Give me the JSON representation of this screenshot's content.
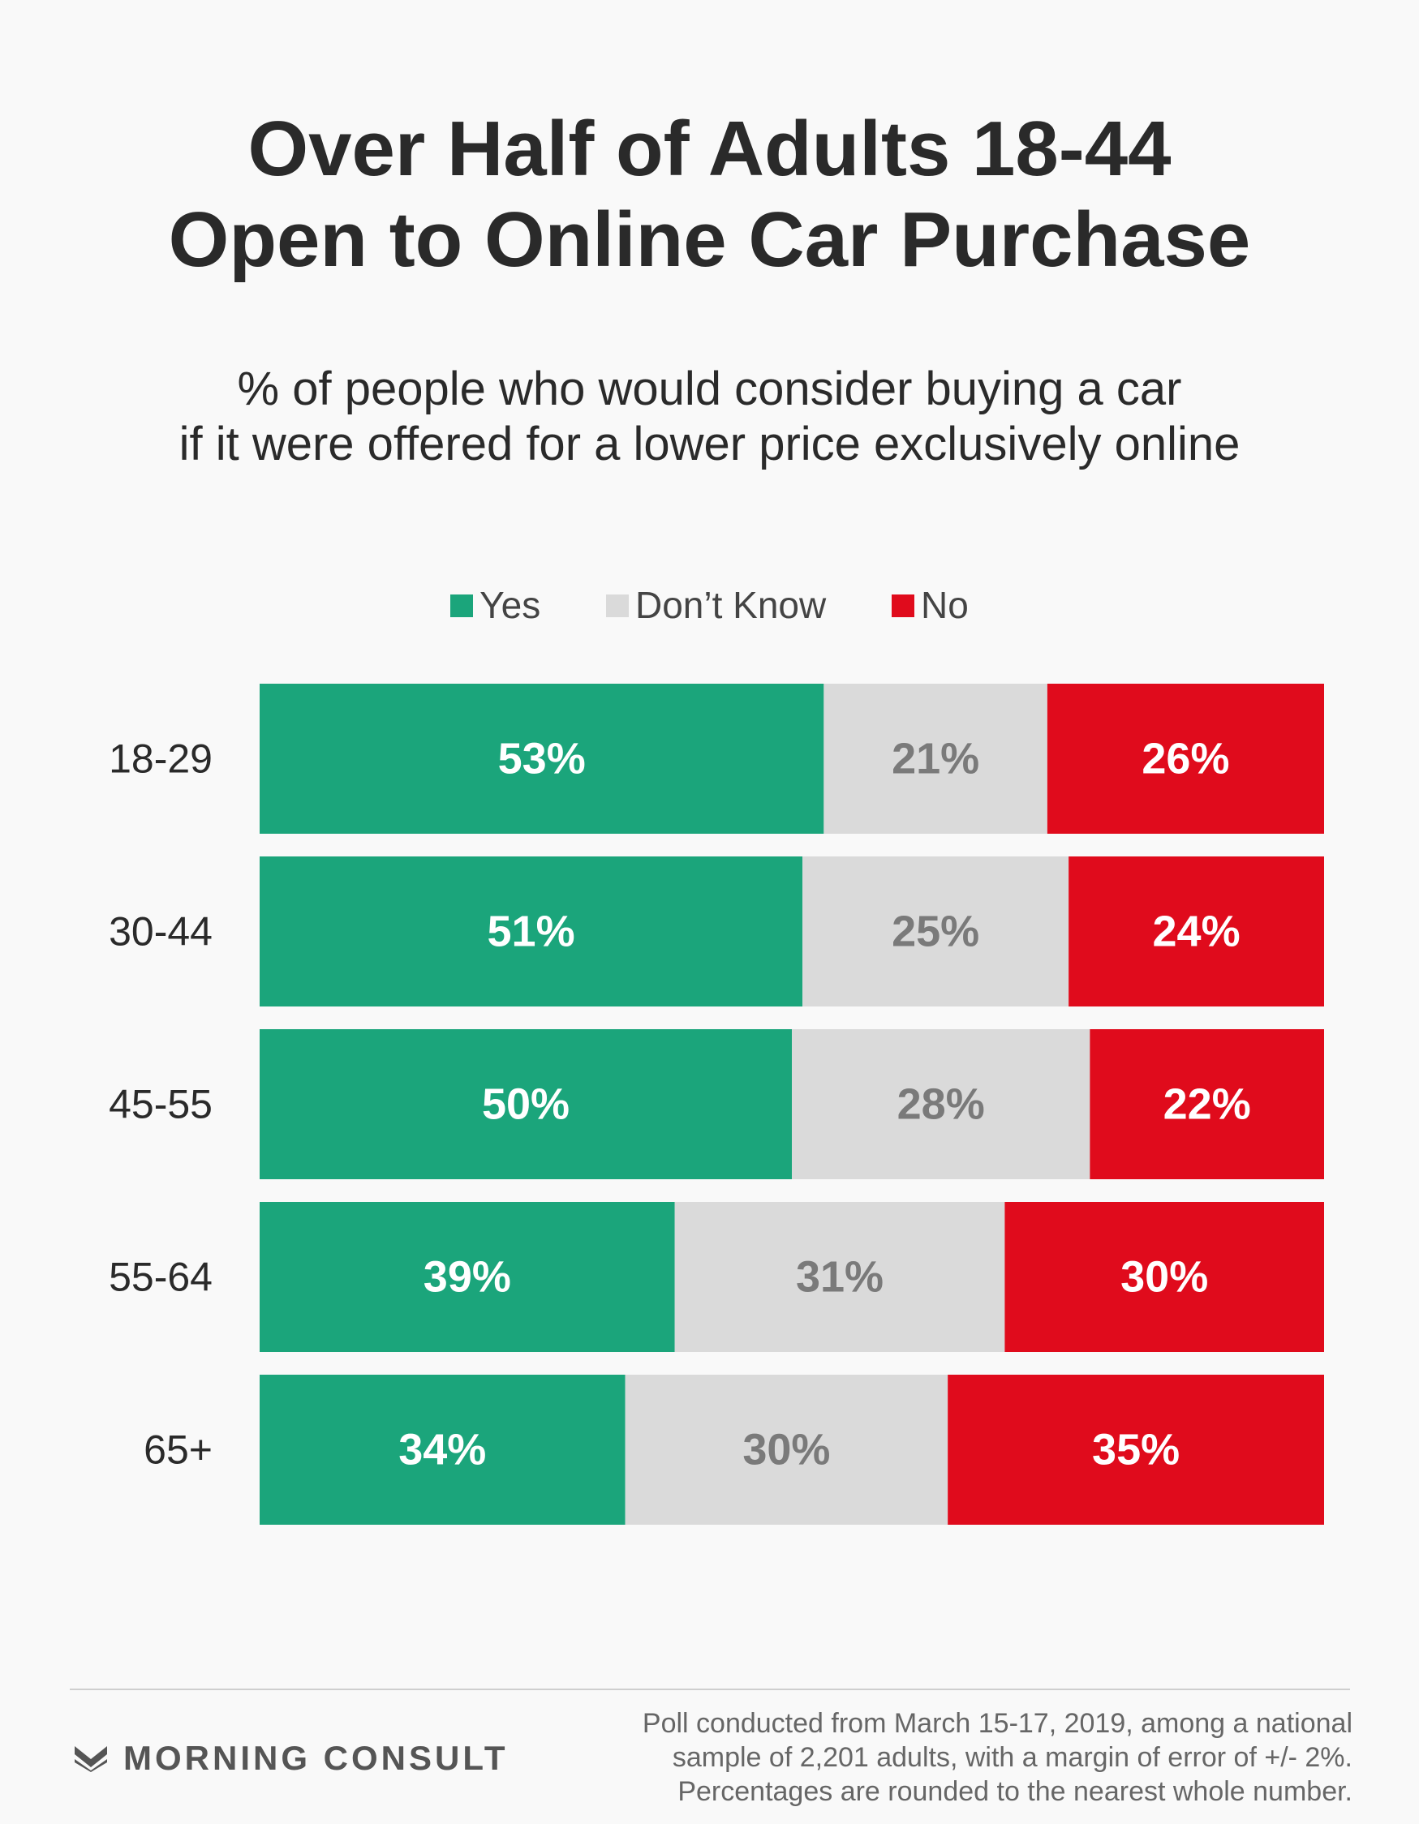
{
  "title": {
    "line1": "Over Half of Adults 18-44",
    "line2": "Open to Online Car Purchase"
  },
  "subtitle": {
    "line1": "% of people who would consider buying a car",
    "line2": "if it were offered for a lower price exclusively online"
  },
  "legend": [
    {
      "label": "Yes",
      "color": "#1ba57b"
    },
    {
      "label": "Don’t Know",
      "color": "#dadada"
    },
    {
      "label": "No",
      "color": "#e00b1c"
    }
  ],
  "chart_data": {
    "type": "bar",
    "orientation": "horizontal",
    "stacked": true,
    "categories": [
      "18-29",
      "30-44",
      "45-55",
      "55-64",
      "65+"
    ],
    "series": [
      {
        "name": "Yes",
        "color": "#1ba57b",
        "label_color": "#ffffff",
        "values": [
          53,
          51,
          50,
          39,
          34
        ]
      },
      {
        "name": "Don’t Know",
        "color": "#dadada",
        "label_color": "#7a7a7a",
        "values": [
          21,
          25,
          28,
          31,
          30
        ]
      },
      {
        "name": "No",
        "color": "#e00b1c",
        "label_color": "#ffffff",
        "values": [
          26,
          24,
          22,
          30,
          35
        ]
      }
    ],
    "value_suffix": "%",
    "legend_position": "top",
    "grid": false
  },
  "footer": {
    "brand": "MORNING CONSULT",
    "note_line1": "Poll conducted from March 15-17, 2019, among a national",
    "note_line2": "sample of 2,201 adults, with a margin of error of +/- 2%.",
    "note_line3": "Percentages are rounded to the nearest whole number."
  }
}
